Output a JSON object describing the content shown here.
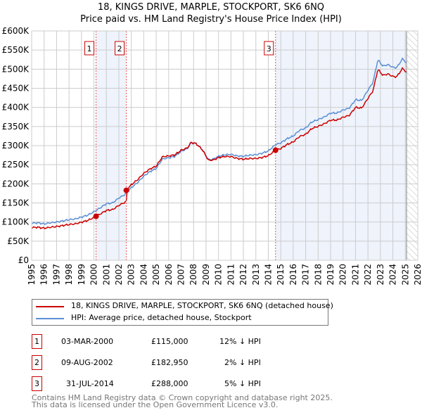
{
  "title": "18, KINGS DRIVE, MARPLE, STOCKPORT, SK6 6NQ",
  "subtitle": "Price paid vs. HM Land Registry's House Price Index (HPI)",
  "colors": {
    "price": "#cc0000",
    "hpi": "#5b8fd4",
    "shade": "#eef3fc",
    "grid": "#cccccc"
  },
  "chart_data": {
    "type": "line",
    "xlim": [
      1995,
      2026
    ],
    "ylim": [
      0,
      600000
    ],
    "x_ticks": [
      "1995",
      "1996",
      "1997",
      "1998",
      "1999",
      "2000",
      "2001",
      "2002",
      "2003",
      "2004",
      "2005",
      "2006",
      "2007",
      "2008",
      "2009",
      "2010",
      "2011",
      "2012",
      "2013",
      "2014",
      "2015",
      "2016",
      "2017",
      "2018",
      "2019",
      "2020",
      "2021",
      "2022",
      "2023",
      "2024",
      "2025",
      "2026"
    ],
    "y_ticks": [
      "£0",
      "£50K",
      "£100K",
      "£150K",
      "£200K",
      "£250K",
      "£300K",
      "£350K",
      "£400K",
      "£450K",
      "£500K",
      "£550K",
      "£600K"
    ],
    "series": [
      {
        "name": "HPI: Average price, detached house, Stockport",
        "x": [
          1995,
          1995.5,
          1996,
          1996.5,
          1997,
          1997.5,
          1998,
          1998.5,
          1999,
          1999.5,
          2000,
          2000.5,
          2001,
          2001.5,
          2002,
          2002.5,
          2003,
          2003.5,
          2004,
          2004.5,
          2005,
          2005.5,
          2006,
          2006.5,
          2007,
          2007.5,
          2007.8,
          2008.2,
          2008.7,
          2009.2,
          2009.6,
          2010,
          2010.5,
          2011,
          2011.5,
          2012,
          2012.5,
          2013,
          2013.5,
          2014,
          2014.6,
          2015,
          2015.5,
          2016,
          2016.5,
          2017,
          2017.5,
          2018,
          2018.5,
          2019,
          2019.5,
          2020,
          2020.5,
          2021,
          2021.5,
          2022,
          2022.4,
          2022.8,
          2023.2,
          2023.6,
          2024,
          2024.3,
          2024.8,
          2025.1
        ],
        "y": [
          97000,
          98000,
          95000,
          98000,
          100000,
          103000,
          106000,
          108000,
          113000,
          118000,
          127000,
          137000,
          148000,
          150000,
          163000,
          172000,
          190000,
          203000,
          220000,
          232000,
          240000,
          265000,
          268000,
          272000,
          285000,
          292000,
          307000,
          305000,
          290000,
          263000,
          265000,
          272000,
          276000,
          277000,
          273000,
          272000,
          275000,
          276000,
          280000,
          286000,
          303000,
          307000,
          318000,
          325000,
          340000,
          346000,
          362000,
          368000,
          375000,
          385000,
          385000,
          393000,
          398000,
          420000,
          418000,
          445000,
          465000,
          525000,
          508000,
          512000,
          505000,
          504000,
          528000,
          515000
        ]
      },
      {
        "name": "18, KINGS DRIVE, MARPLE, STOCKPORT, SK6 6NQ (detached house)",
        "derived_from_hpi": true
      }
    ],
    "sales": [
      {
        "id": "1",
        "x": 2000.17,
        "price": 115000
      },
      {
        "id": "2",
        "x": 2002.6,
        "price": 182950
      },
      {
        "id": "3",
        "x": 2014.58,
        "price": 288000
      }
    ],
    "data_end": 2025.1
  },
  "legend": {
    "price": "18, KINGS DRIVE, MARPLE, STOCKPORT, SK6 6NQ (detached house)",
    "hpi": "HPI: Average price, detached house, Stockport"
  },
  "transactions": [
    {
      "id": "1",
      "date": "03-MAR-2000",
      "price": "£115,000",
      "hpi": "12% ↓ HPI"
    },
    {
      "id": "2",
      "date": "09-AUG-2002",
      "price": "£182,950",
      "hpi": "2% ↓ HPI"
    },
    {
      "id": "3",
      "date": "31-JUL-2014",
      "price": "£288,000",
      "hpi": "5% ↓ HPI"
    }
  ],
  "footer": {
    "line1": "Contains HM Land Registry data © Crown copyright and database right 2025.",
    "line2": "This data is licensed under the Open Government Licence v3.0."
  }
}
